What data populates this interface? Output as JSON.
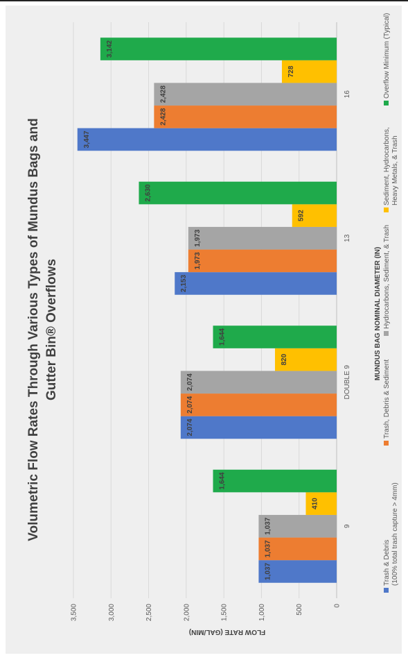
{
  "chart_data": {
    "type": "bar",
    "orientation": "vertical",
    "title_line1": "Volumetric Flow Rates Through Various Types of Mundus Bags and",
    "title_line2": "Gutter Bin® Overflows",
    "xlabel": "MUNDUS BAG NOMINAL DIAMETER (IN)",
    "ylabel": "FLOW RATE (GAL/MIN)",
    "ylim": [
      0,
      3500
    ],
    "yticks": [
      0,
      500,
      1000,
      1500,
      2000,
      2500,
      3000,
      3500
    ],
    "ytick_labels": [
      "0",
      "500",
      "1,000",
      "1,500",
      "2,000",
      "2,500",
      "3,000",
      "3,500"
    ],
    "grid": true,
    "legend_position": "bottom",
    "categories": [
      "9",
      "DOUBLE 9",
      "13",
      "16"
    ],
    "series": [
      {
        "name": "Trash & Debris",
        "name_line2": "(100% total trash capture > 4mm)",
        "color": "#4f78c9",
        "values": [
          1037,
          2074,
          2153,
          3447
        ],
        "labels": [
          "1,037",
          "2,074",
          "2,153",
          "3,447"
        ]
      },
      {
        "name": "Trash, Debris & Sediment",
        "color": "#ed7d31",
        "values": [
          1037,
          2074,
          1973,
          2428
        ],
        "labels": [
          "1,037",
          "2,074",
          "1,973",
          "2,428"
        ]
      },
      {
        "name": "Hydrocarbons, Sediment, & Trash",
        "color": "#a5a5a5",
        "values": [
          1037,
          2074,
          1973,
          2428
        ],
        "labels": [
          "1,037",
          "2,074",
          "1,973",
          "2,428"
        ]
      },
      {
        "name": "Sediment, Hydrocarbons,",
        "name_line2": "Heavy Metals, & Trash",
        "color": "#ffc000",
        "values": [
          410,
          820,
          592,
          728
        ],
        "labels": [
          "410",
          "820",
          "592",
          "728"
        ]
      },
      {
        "name": "Overflow Minimum (Typical)",
        "color": "#1faa4b",
        "values": [
          1644,
          1644,
          2630,
          3142
        ],
        "labels": [
          "1,644",
          "1,644",
          "2,630",
          "3,142"
        ]
      }
    ]
  }
}
